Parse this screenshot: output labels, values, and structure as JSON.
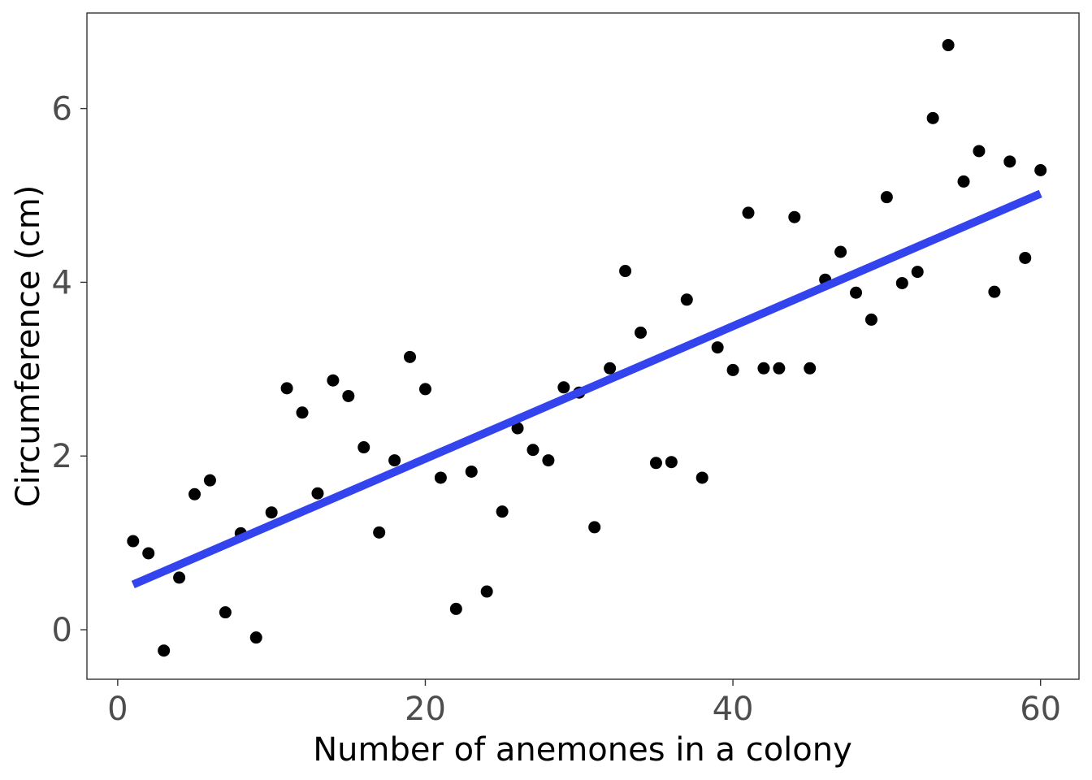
{
  "chart_data": {
    "type": "scatter",
    "xlabel": "Number of anemones in a colony",
    "ylabel": "Circumference (cm)",
    "xlim": [
      -2,
      62.5
    ],
    "ylim": [
      -0.57,
      7.1
    ],
    "x_ticks": [
      "0",
      "20",
      "40",
      "60"
    ],
    "y_ticks": [
      "0",
      "2",
      "4",
      "6"
    ],
    "x_tick_values": [
      0,
      20,
      40,
      60
    ],
    "y_tick_values": [
      0,
      2,
      4,
      6
    ],
    "grid": false,
    "series": [
      {
        "x": [
          1,
          2,
          3,
          4,
          5,
          6,
          7,
          8,
          9,
          10,
          11,
          12,
          13,
          14,
          15,
          16,
          17,
          18,
          19,
          20,
          21,
          22,
          23,
          24,
          25,
          26,
          27,
          28,
          29,
          30,
          31,
          32,
          33,
          34,
          35,
          36,
          37,
          38,
          39,
          40,
          41,
          42,
          43,
          44,
          45,
          46,
          47,
          48,
          49,
          50,
          51,
          52,
          53,
          54,
          55,
          56,
          57,
          58,
          59,
          60
        ],
        "y": [
          1.02,
          0.88,
          -0.24,
          0.6,
          1.56,
          1.72,
          0.2,
          1.11,
          -0.09,
          1.35,
          2.78,
          2.5,
          1.57,
          2.87,
          2.69,
          2.1,
          1.12,
          1.95,
          3.14,
          2.77,
          1.75,
          0.24,
          1.82,
          0.44,
          1.36,
          2.32,
          2.07,
          1.95,
          2.79,
          2.73,
          1.18,
          3.01,
          4.13,
          3.42,
          1.92,
          1.93,
          3.8,
          1.75,
          3.25,
          2.99,
          4.8,
          3.01,
          3.01,
          4.75,
          3.01,
          4.03,
          4.35,
          3.88,
          3.57,
          4.98,
          3.99,
          4.12,
          5.89,
          6.73,
          5.16,
          5.51,
          3.89,
          5.39,
          4.28,
          5.29
        ],
        "color": "#000000"
      }
    ],
    "trendline": {
      "x": [
        1,
        60
      ],
      "y": [
        0.52,
        5.02
      ],
      "color": "#3344ee"
    }
  }
}
